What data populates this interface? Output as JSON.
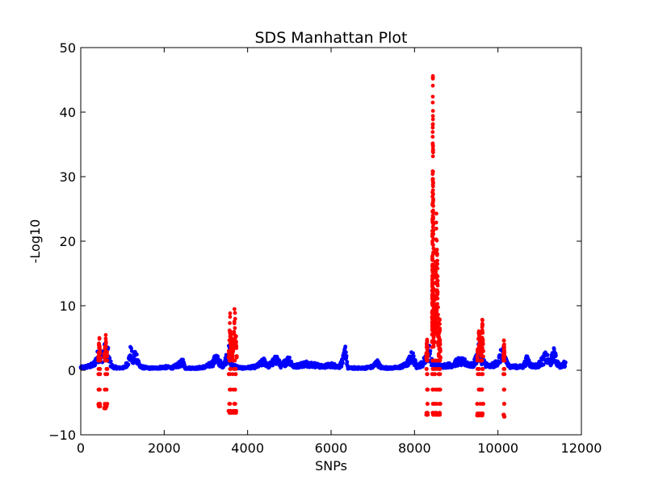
{
  "chart_data": {
    "type": "scatter",
    "title": "SDS Manhattan Plot",
    "xlabel": "SNPs",
    "ylabel": "-Log10",
    "xlim": [
      0,
      12000
    ],
    "ylim": [
      -10,
      50
    ],
    "xticks": [
      "0",
      "2000",
      "4000",
      "6000",
      "8000",
      "10000",
      "12000"
    ],
    "yticks": [
      "−10",
      "0",
      "10",
      "20",
      "30",
      "40",
      "50"
    ],
    "grid": false,
    "legend": "none",
    "marker": "dot",
    "colors": {
      "blue": "#0000ff",
      "red": "#ff0000"
    },
    "series": [
      {
        "color": "blue",
        "profile": [
          [
            0,
            0.6
          ],
          [
            150,
            0.8
          ],
          [
            300,
            1.2
          ],
          [
            380,
            2.5
          ],
          [
            430,
            3.8
          ],
          [
            480,
            2.8
          ],
          [
            530,
            3.6
          ],
          [
            600,
            4.6
          ],
          [
            650,
            3.8
          ],
          [
            700,
            1.8
          ],
          [
            760,
            0.8
          ],
          [
            900,
            0.5
          ],
          [
            1050,
            0.6
          ],
          [
            1150,
            2.2
          ],
          [
            1200,
            4.2
          ],
          [
            1250,
            1.8
          ],
          [
            1300,
            3.5
          ],
          [
            1350,
            2.8
          ],
          [
            1420,
            0.8
          ],
          [
            1600,
            0.5
          ],
          [
            1800,
            0.5
          ],
          [
            2000,
            0.7
          ],
          [
            2200,
            0.6
          ],
          [
            2400,
            1.5
          ],
          [
            2450,
            2.0
          ],
          [
            2500,
            0.5
          ],
          [
            2800,
            0.5
          ],
          [
            3000,
            0.8
          ],
          [
            3150,
            1.5
          ],
          [
            3250,
            2.8
          ],
          [
            3300,
            2.0
          ],
          [
            3400,
            1.0
          ],
          [
            3480,
            2.5
          ],
          [
            3520,
            3.5
          ],
          [
            3560,
            4.0
          ],
          [
            3600,
            1.2
          ],
          [
            3800,
            0.6
          ],
          [
            3900,
            0.5
          ],
          [
            4200,
            0.8
          ],
          [
            4400,
            2.0
          ],
          [
            4500,
            1.0
          ],
          [
            4700,
            2.5
          ],
          [
            4800,
            1.0
          ],
          [
            5000,
            2.5
          ],
          [
            5100,
            0.8
          ],
          [
            5400,
            1.5
          ],
          [
            5600,
            1.2
          ],
          [
            5800,
            0.8
          ],
          [
            6000,
            1.2
          ],
          [
            6200,
            0.8
          ],
          [
            6300,
            2.5
          ],
          [
            6350,
            4.6
          ],
          [
            6400,
            0.5
          ],
          [
            6600,
            0.5
          ],
          [
            6800,
            0.5
          ],
          [
            7000,
            0.8
          ],
          [
            7100,
            1.8
          ],
          [
            7200,
            0.6
          ],
          [
            7400,
            0.5
          ],
          [
            7600,
            0.6
          ],
          [
            7800,
            1.2
          ],
          [
            7950,
            3.2
          ],
          [
            8050,
            0.8
          ],
          [
            8200,
            1.5
          ],
          [
            8300,
            3.5
          ],
          [
            8350,
            4.5
          ],
          [
            8400,
            2.0
          ],
          [
            8500,
            1.0
          ],
          [
            8700,
            1.0
          ],
          [
            8900,
            1.2
          ],
          [
            9050,
            2.0
          ],
          [
            9200,
            1.8
          ],
          [
            9400,
            1.0
          ],
          [
            9520,
            3.5
          ],
          [
            9560,
            5.0
          ],
          [
            9620,
            2.0
          ],
          [
            9800,
            0.8
          ],
          [
            9950,
            1.5
          ],
          [
            10050,
            2.8
          ],
          [
            10100,
            4.0
          ],
          [
            10150,
            3.5
          ],
          [
            10250,
            1.0
          ],
          [
            10400,
            0.8
          ],
          [
            10600,
            0.8
          ],
          [
            10700,
            2.5
          ],
          [
            10800,
            1.0
          ],
          [
            10950,
            1.0
          ],
          [
            11050,
            2.0
          ],
          [
            11150,
            3.0
          ],
          [
            11250,
            1.5
          ],
          [
            11350,
            3.8
          ],
          [
            11400,
            2.0
          ],
          [
            11500,
            0.8
          ],
          [
            11600,
            1.5
          ]
        ]
      },
      {
        "color": "red",
        "clusters": [
          {
            "x": [
              420,
              470
            ],
            "peak": 5.4,
            "low": -5.6
          },
          {
            "x": [
              560,
              640
            ],
            "peak": 5.9,
            "low": -5.9
          },
          {
            "x": [
              3540,
              3620
            ],
            "peak": 9.0,
            "low": -6.6
          },
          {
            "x": [
              3640,
              3740
            ],
            "peak": 10.3,
            "low": -6.6
          },
          {
            "x": [
              8280,
              8320
            ],
            "peak": 5.5,
            "low": -6.9
          },
          {
            "x": [
              8420,
              8460
            ],
            "peak": 46.8,
            "low": -6.9
          },
          {
            "x": [
              8470,
              8580
            ],
            "peak": 26.0,
            "low": -6.9
          },
          {
            "x": [
              8580,
              8620
            ],
            "peak": 9.0,
            "low": -6.9
          },
          {
            "x": [
              9500,
              9600
            ],
            "peak": 7.0,
            "low": -7.0
          },
          {
            "x": [
              9600,
              9650
            ],
            "peak": 8.8,
            "low": -7.0
          },
          {
            "x": [
              10130,
              10160
            ],
            "peak": 5.3,
            "low": -7.2
          }
        ]
      }
    ]
  }
}
